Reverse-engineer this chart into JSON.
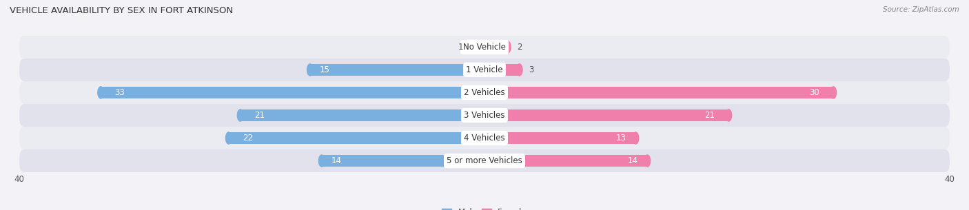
{
  "title": "VEHICLE AVAILABILITY BY SEX IN FORT ATKINSON",
  "source": "Source: ZipAtlas.com",
  "categories": [
    "No Vehicle",
    "1 Vehicle",
    "2 Vehicles",
    "3 Vehicles",
    "4 Vehicles",
    "5 or more Vehicles"
  ],
  "male_values": [
    1,
    15,
    33,
    21,
    22,
    14
  ],
  "female_values": [
    2,
    3,
    30,
    21,
    13,
    14
  ],
  "male_color": "#7ab0e0",
  "female_color": "#f07fab",
  "bg_color": "#f2f2f7",
  "row_light": "#ebebf2",
  "row_dark": "#e2e2ec",
  "xlim": 40,
  "label_fontsize": 8.5,
  "title_fontsize": 9.5,
  "legend_fontsize": 8.5,
  "bar_height": 0.52
}
